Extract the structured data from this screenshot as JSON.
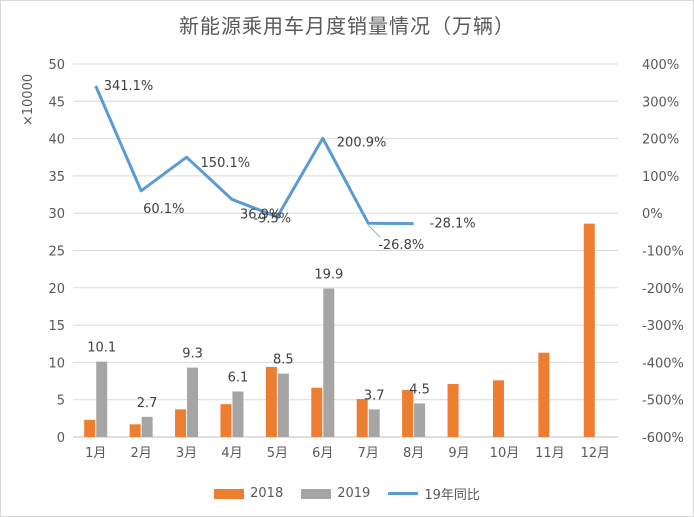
{
  "chart_data": {
    "type": "bar",
    "title": "新能源乘用车月度销量情况（万辆）",
    "ylabel": "×10000",
    "categories": [
      "1月",
      "2月",
      "3月",
      "4月",
      "5月",
      "6月",
      "7月",
      "8月",
      "9月",
      "10月",
      "11月",
      "12月"
    ],
    "ylim": [
      0,
      50
    ],
    "yticks": [
      "0",
      "5",
      "10",
      "15",
      "20",
      "25",
      "30",
      "35",
      "40",
      "45",
      "50"
    ],
    "y2lim": [
      -600,
      400
    ],
    "y2ticks": [
      "-600%",
      "-500%",
      "-400%",
      "-300%",
      "-200%",
      "-100%",
      "0%",
      "100%",
      "200%",
      "300%",
      "400%"
    ],
    "series": [
      {
        "name": "2018",
        "type": "bar",
        "color": "#ED7D31",
        "values": [
          2.3,
          1.7,
          3.7,
          4.4,
          9.4,
          6.6,
          5.1,
          6.3,
          7.1,
          7.6,
          11.3,
          28.6
        ]
      },
      {
        "name": "2019",
        "type": "bar",
        "color": "#A5A5A5",
        "values": [
          10.1,
          2.7,
          9.3,
          6.1,
          8.5,
          19.9,
          3.7,
          4.5,
          null,
          null,
          null,
          null
        ],
        "labels": [
          "10.1",
          "2.7",
          "9.3",
          "6.1",
          "8.5",
          "19.9",
          "3.7",
          "4.5",
          "",
          "",
          "",
          ""
        ]
      },
      {
        "name": "19年同比",
        "type": "line",
        "axis": "right",
        "color": "#5B9BD5",
        "values": [
          341.1,
          60.1,
          150.1,
          36.9,
          -9.5,
          200.9,
          -26.8,
          -28.1,
          null,
          null,
          null,
          null
        ],
        "labels": [
          "341.1%",
          "60.1%",
          "150.1%",
          "36.9%",
          "-9.5%",
          "200.9%",
          "-26.8%",
          "-28.1%",
          "",
          "",
          "",
          ""
        ]
      }
    ],
    "legend_position": "bottom",
    "grid": true
  }
}
